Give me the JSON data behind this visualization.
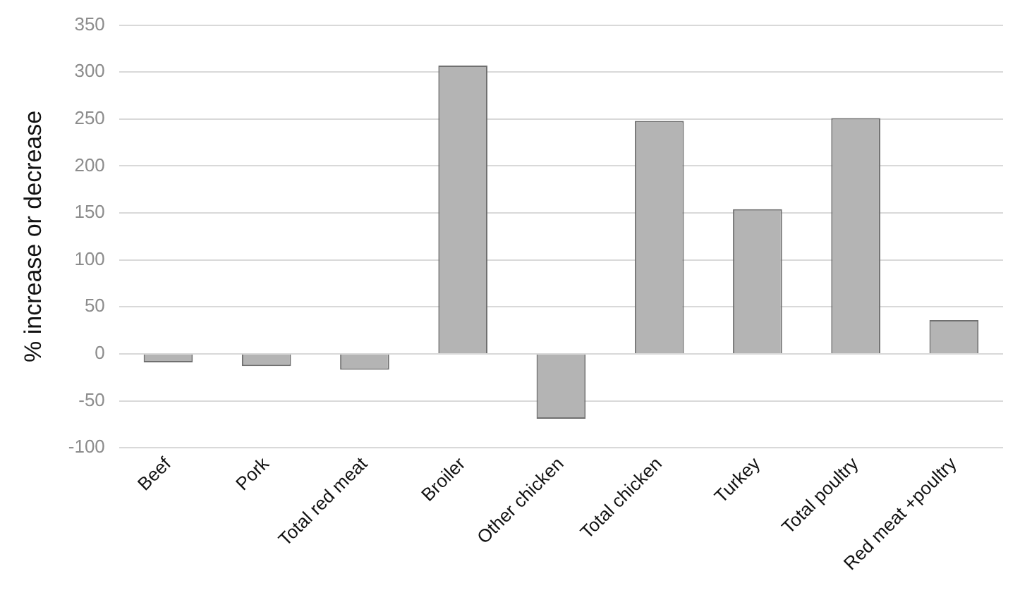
{
  "chart_data": {
    "type": "bar",
    "ylabel": "% increase or decrease",
    "categories": [
      "Beef",
      "Pork",
      "Total red meat",
      "Broiler",
      "Other chicken",
      "Total chicken",
      "Turkey",
      "Total poultry",
      "Red meat +poultry"
    ],
    "values": [
      -9,
      -13,
      -17,
      307,
      -69,
      248,
      154,
      251,
      36
    ],
    "color": "#b4b4b4",
    "ylim": [
      -100,
      350
    ],
    "yticks": [
      -100,
      -50,
      0,
      50,
      100,
      150,
      200,
      250,
      300,
      350
    ],
    "grid": "y",
    "legend": false
  }
}
